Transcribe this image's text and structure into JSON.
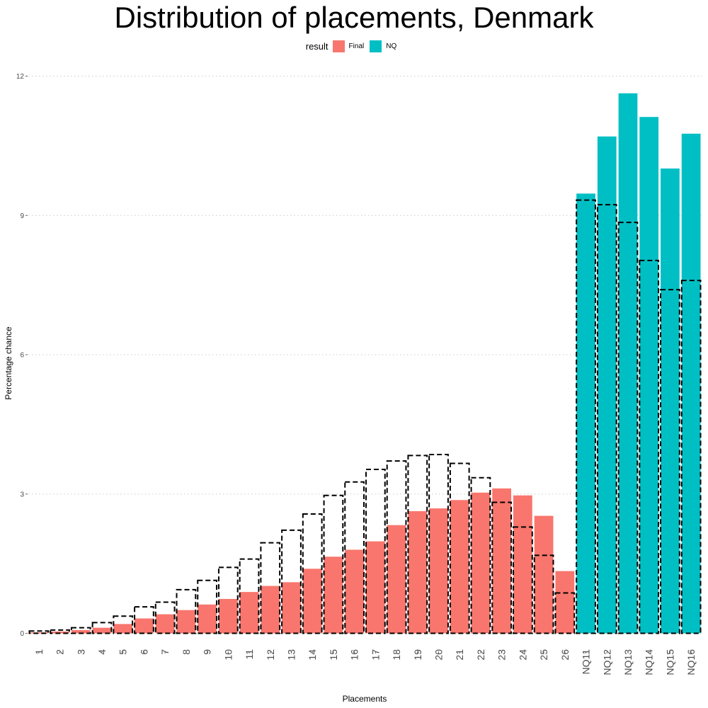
{
  "chart_data": {
    "type": "bar",
    "title": "Distribution of placements, Denmark",
    "xlabel": "Placements",
    "ylabel": "Percentage chance",
    "ylim": [
      0,
      12
    ],
    "yticks": [
      0,
      3,
      6,
      9,
      12
    ],
    "grid": true,
    "legend": {
      "title": "result",
      "position": "top",
      "entries": [
        {
          "name": "Final",
          "color": "#F8766D"
        },
        {
          "name": "NQ",
          "color": "#00BFC4"
        }
      ]
    },
    "categories": [
      "1",
      "2",
      "3",
      "4",
      "5",
      "6",
      "7",
      "8",
      "9",
      "10",
      "11",
      "12",
      "13",
      "14",
      "15",
      "16",
      "17",
      "18",
      "19",
      "20",
      "21",
      "22",
      "23",
      "24",
      "25",
      "26",
      "NQ11",
      "NQ12",
      "NQ13",
      "NQ14",
      "NQ15",
      "NQ16"
    ],
    "result": [
      "Final",
      "Final",
      "Final",
      "Final",
      "Final",
      "Final",
      "Final",
      "Final",
      "Final",
      "Final",
      "Final",
      "Final",
      "Final",
      "Final",
      "Final",
      "Final",
      "Final",
      "Final",
      "Final",
      "Final",
      "Final",
      "Final",
      "Final",
      "Final",
      "Final",
      "Final",
      "NQ",
      "NQ",
      "NQ",
      "NQ",
      "NQ",
      "NQ"
    ],
    "values": [
      0.02,
      0.04,
      0.07,
      0.12,
      0.2,
      0.32,
      0.41,
      0.5,
      0.62,
      0.74,
      0.89,
      1.02,
      1.1,
      1.39,
      1.65,
      1.8,
      1.98,
      2.33,
      2.63,
      2.69,
      2.87,
      3.03,
      3.12,
      2.97,
      2.53,
      1.34,
      9.47,
      10.7,
      11.63,
      11.12,
      10.01,
      10.76
    ],
    "reference_values": [
      0.05,
      0.07,
      0.12,
      0.23,
      0.37,
      0.57,
      0.67,
      0.94,
      1.14,
      1.42,
      1.6,
      1.95,
      2.22,
      2.57,
      2.97,
      3.26,
      3.53,
      3.71,
      3.83,
      3.85,
      3.66,
      3.35,
      2.82,
      2.29,
      1.68,
      0.87,
      9.33,
      9.23,
      8.85,
      8.03,
      7.4,
      7.6
    ]
  },
  "colors": {
    "final": "#F8766D",
    "nq": "#00BFC4",
    "grid": "#cccccc",
    "outline": "#000000"
  }
}
